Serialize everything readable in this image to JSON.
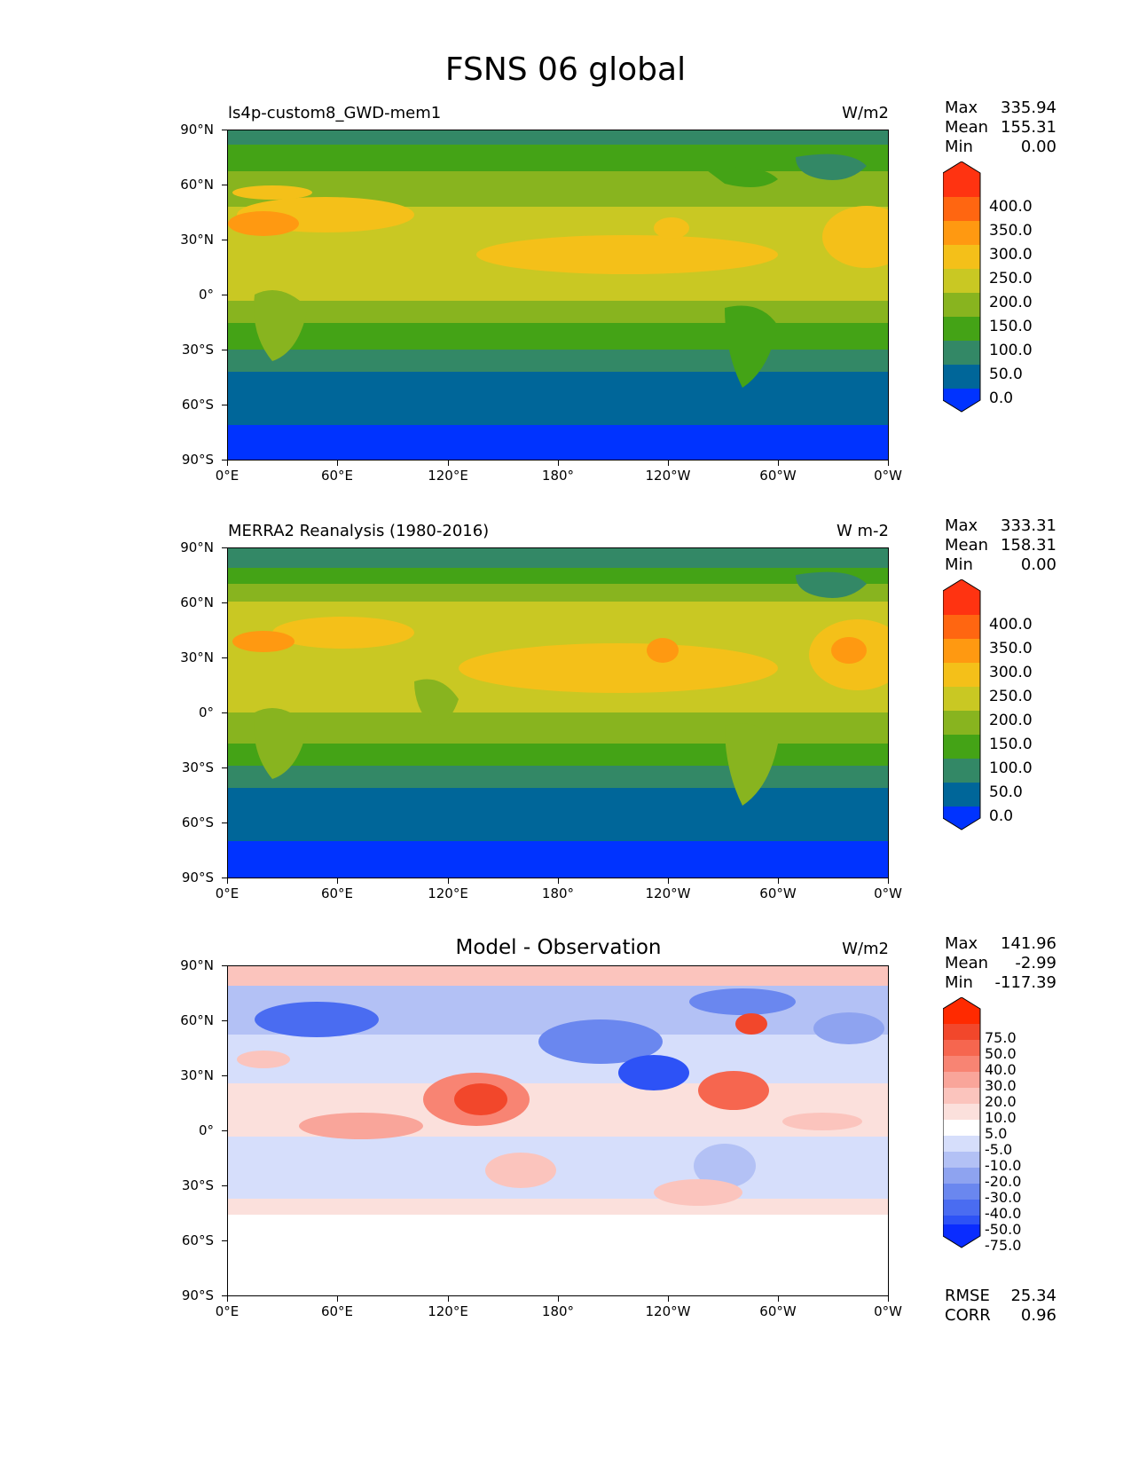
{
  "figure": {
    "title": "FSNS 06 global"
  },
  "axes": {
    "lat_ticks": [
      "90°N",
      "60°N",
      "30°N",
      "0°",
      "30°S",
      "60°S",
      "90°S"
    ],
    "lon_ticks": [
      "0°E",
      "60°E",
      "120°E",
      "180°",
      "120°W",
      "60°W",
      "0°W"
    ]
  },
  "panels": [
    {
      "title_left": "ls4p-custom8_GWD-mem1",
      "title_center": "",
      "units": "W/m2",
      "stats": [
        {
          "k": "Max",
          "v": "335.94"
        },
        {
          "k": "Mean",
          "v": "155.31"
        },
        {
          "k": "Min",
          "v": "0.00"
        }
      ],
      "colorbar_labels": [
        "400.0",
        "350.0",
        "300.0",
        "250.0",
        "200.0",
        "150.0",
        "100.0",
        "50.0",
        "0.0"
      ]
    },
    {
      "title_left": "MERRA2 Reanalysis (1980-2016)",
      "title_center": "",
      "units": "W m-2",
      "stats": [
        {
          "k": "Max",
          "v": "333.31"
        },
        {
          "k": "Mean",
          "v": "158.31"
        },
        {
          "k": "Min",
          "v": "0.00"
        }
      ],
      "colorbar_labels": [
        "400.0",
        "350.0",
        "300.0",
        "250.0",
        "200.0",
        "150.0",
        "100.0",
        "50.0",
        "0.0"
      ]
    },
    {
      "title_left": "",
      "title_center": "Model - Observation",
      "units": "W/m2",
      "stats": [
        {
          "k": "Max",
          "v": "141.96"
        },
        {
          "k": "Mean",
          "v": "-2.99"
        },
        {
          "k": "Min",
          "v": "-117.39"
        }
      ],
      "colorbar_labels": [
        "75.0",
        "50.0",
        "40.0",
        "30.0",
        "20.0",
        "10.0",
        "5.0",
        "-5.0",
        "-10.0",
        "-20.0",
        "-30.0",
        "-40.0",
        "-50.0",
        "-75.0"
      ],
      "footer_stats": [
        {
          "k": "RMSE",
          "v": "25.34"
        },
        {
          "k": "CORR",
          "v": "0.96"
        }
      ]
    }
  ],
  "colors": {
    "abs_scale": [
      "#0033ff",
      "#006699",
      "#338866",
      "#44a316",
      "#88b41f",
      "#c9c823",
      "#f4c019",
      "#ff9911",
      "#ff6611",
      "#ff3311"
    ],
    "diff_scale": [
      "#0a2cff",
      "#2d52f6",
      "#4a6cf1",
      "#6a87ef",
      "#8ea3f0",
      "#b3c1f5",
      "#d6defb",
      "#ffffff",
      "#fbe0dc",
      "#fbc4bd",
      "#f9a59a",
      "#f88473",
      "#f6664f",
      "#f2472b",
      "#ff2a00"
    ]
  }
}
